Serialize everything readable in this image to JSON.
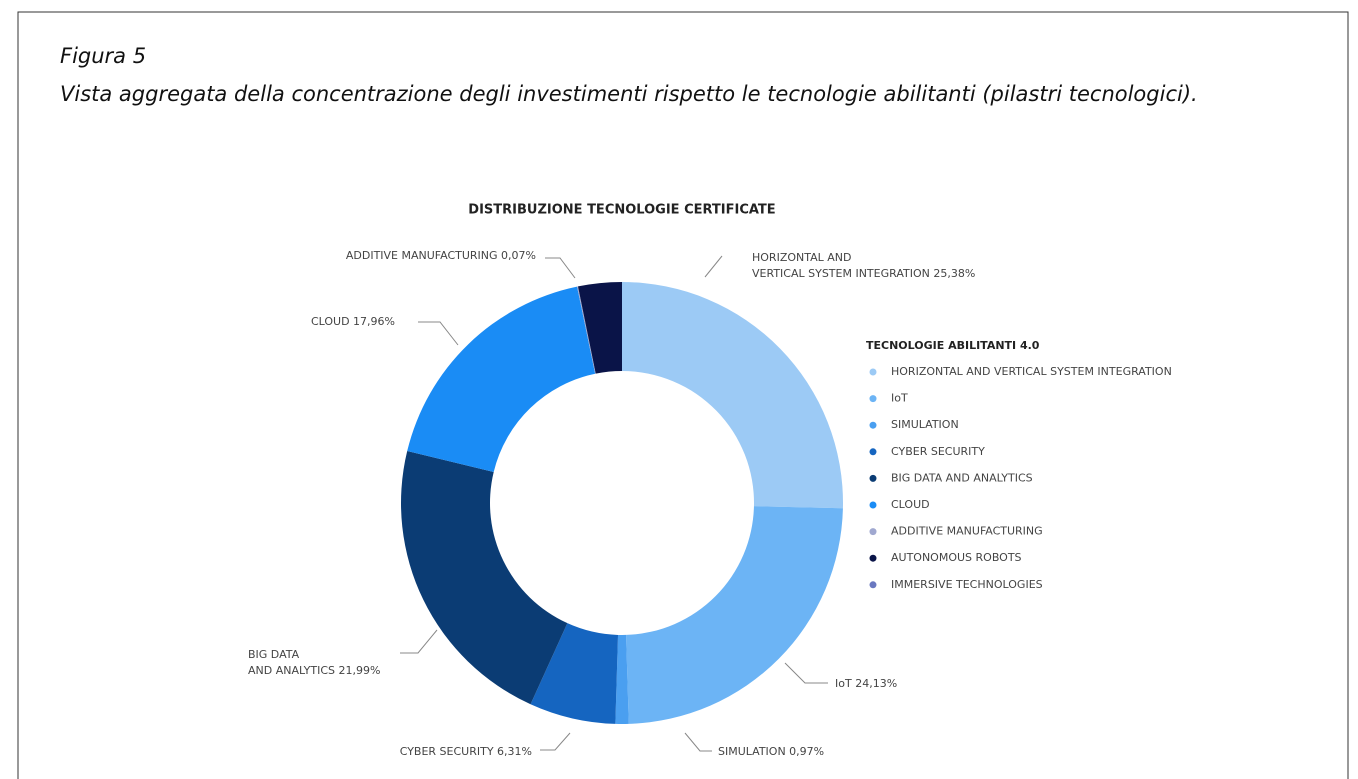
{
  "figure_label": "Figura 5",
  "caption": "Vista aggregata della concentrazione degli investimenti rispetto le tecnologie abilitanti (pilastri tecnologici).",
  "chart_data": {
    "type": "donut",
    "title": "DISTRIBUZIONE TECNOLOGIE CERTIFICATE",
    "legend_title": "TECNOLOGIE ABILITANTI 4.0",
    "categories": [
      "HORIZONTAL AND VERTICAL SYSTEM INTEGRATION",
      "IoT",
      "SIMULATION",
      "CYBER SECURITY",
      "BIG DATA AND ANALYTICS",
      "CLOUD",
      "ADDITIVE MANUFACTURING",
      "AUTONOMOUS ROBOTS",
      "IMMERSIVE TECHNOLOGIES"
    ],
    "values": [
      25.38,
      24.13,
      0.97,
      6.31,
      21.99,
      17.96,
      0.07,
      3.19,
      0
    ],
    "value_labels": [
      "25,38%",
      "24,13%",
      "0,97%",
      "6,31%",
      "21,99%",
      "17,96%",
      "0,07%",
      null,
      null
    ],
    "colors": [
      "#9ccaf5",
      "#6cb4f5",
      "#4a9ff0",
      "#1565c0",
      "#0b3c74",
      "#1a8cf5",
      "#a0a8d0",
      "#0a1448",
      "#6a78c0"
    ],
    "legend": "right"
  }
}
